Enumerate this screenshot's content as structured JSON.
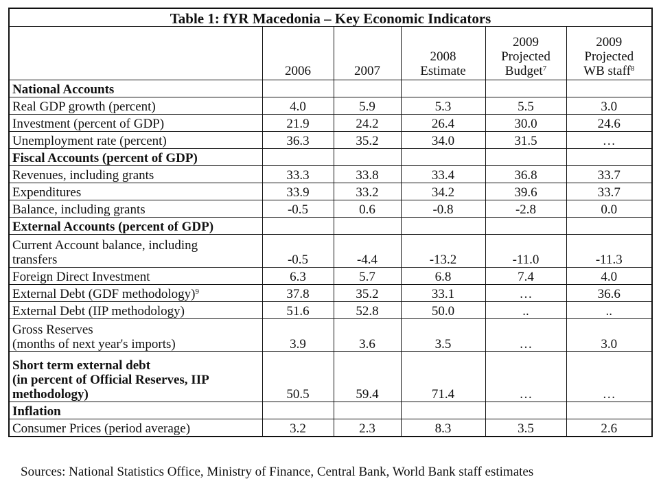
{
  "table": {
    "title": "Table 1: fYR Macedonia – Key Economic Indicators",
    "headers": [
      {
        "lines": [
          "2006"
        ],
        "sup": ""
      },
      {
        "lines": [
          "2007"
        ],
        "sup": ""
      },
      {
        "lines": [
          "2008",
          "Estimate"
        ],
        "sup": ""
      },
      {
        "lines": [
          "2009",
          "Projected",
          "Budget"
        ],
        "sup": "7"
      },
      {
        "lines": [
          "2009",
          "Projected",
          "WB staff"
        ],
        "sup": "8"
      }
    ],
    "rows": [
      {
        "kind": "section",
        "lines": [
          "National Accounts"
        ],
        "sup": "",
        "values": [
          "",
          "",
          "",
          "",
          ""
        ],
        "h": 1
      },
      {
        "kind": "item",
        "lines": [
          "Real GDP growth (percent)"
        ],
        "sup": "",
        "values": [
          "4.0",
          "5.9",
          "5.3",
          "5.5",
          "3.0"
        ],
        "h": 1
      },
      {
        "kind": "item",
        "lines": [
          "Investment (percent of GDP)"
        ],
        "sup": "",
        "values": [
          "21.9",
          "24.2",
          "26.4",
          "30.0",
          "24.6"
        ],
        "h": 1
      },
      {
        "kind": "item",
        "lines": [
          "Unemployment rate (percent)"
        ],
        "sup": "",
        "values": [
          "36.3",
          "35.2",
          "34.0",
          "31.5",
          "…"
        ],
        "h": 1
      },
      {
        "kind": "section",
        "lines": [
          "Fiscal Accounts (percent of GDP)"
        ],
        "sup": "",
        "values": [
          "",
          "",
          "",
          "",
          ""
        ],
        "h": 1
      },
      {
        "kind": "item",
        "lines": [
          "Revenues, including grants"
        ],
        "sup": "",
        "values": [
          "33.3",
          "33.8",
          "33.4",
          "36.8",
          "33.7"
        ],
        "h": 1
      },
      {
        "kind": "item",
        "lines": [
          "Expenditures"
        ],
        "sup": "",
        "values": [
          "33.9",
          "33.2",
          "34.2",
          "39.6",
          "33.7"
        ],
        "h": 1
      },
      {
        "kind": "item",
        "lines": [
          "Balance, including grants"
        ],
        "sup": "",
        "values": [
          "-0.5",
          "0.6",
          "-0.8",
          "-2.8",
          "0.0"
        ],
        "h": 1
      },
      {
        "kind": "section",
        "lines": [
          "External Accounts (percent of GDP)"
        ],
        "sup": "",
        "values": [
          "",
          "",
          "",
          "",
          ""
        ],
        "h": 1
      },
      {
        "kind": "item",
        "lines": [
          "Current Account balance, including",
          "transfers"
        ],
        "sup": "",
        "values": [
          "-0.5",
          "-4.4",
          "-13.2",
          "-11.0",
          "-11.3"
        ],
        "h": 2
      },
      {
        "kind": "item",
        "lines": [
          "Foreign Direct Investment"
        ],
        "sup": "",
        "values": [
          "6.3",
          "5.7",
          "6.8",
          "7.4",
          "4.0"
        ],
        "h": 1
      },
      {
        "kind": "item",
        "lines": [
          "External Debt (GDF methodology)"
        ],
        "sup": "9",
        "values": [
          "37.8",
          "35.2",
          "33.1",
          "…",
          "36.6"
        ],
        "h": 1
      },
      {
        "kind": "item",
        "lines": [
          "External Debt (IIP methodology)"
        ],
        "sup": "",
        "values": [
          "51.6",
          "52.8",
          "50.0",
          "..",
          ".."
        ],
        "h": 1
      },
      {
        "kind": "item",
        "lines": [
          "Gross Reserves",
          "(months of next year's imports)"
        ],
        "sup": "",
        "values": [
          "3.9",
          "3.6",
          "3.5",
          "…",
          "3.0"
        ],
        "h": 2
      },
      {
        "kind": "section",
        "lines": [
          "Short term external debt",
          "(in percent of Official Reserves, IIP",
          "methodology)"
        ],
        "sup": "",
        "values": [
          "50.5",
          "59.4",
          "71.4",
          "…",
          "…"
        ],
        "h": 3
      },
      {
        "kind": "section",
        "lines": [
          "Inflation"
        ],
        "sup": "",
        "values": [
          "",
          "",
          "",
          "",
          ""
        ],
        "h": 1
      },
      {
        "kind": "item",
        "lines": [
          "Consumer Prices (period average)"
        ],
        "sup": "",
        "values": [
          "3.2",
          "2.3",
          "8.3",
          "3.5",
          "2.6"
        ],
        "h": 1
      }
    ]
  },
  "sources": "Sources: National Statistics Office, Ministry of Finance, Central Bank, World Bank staff estimates"
}
